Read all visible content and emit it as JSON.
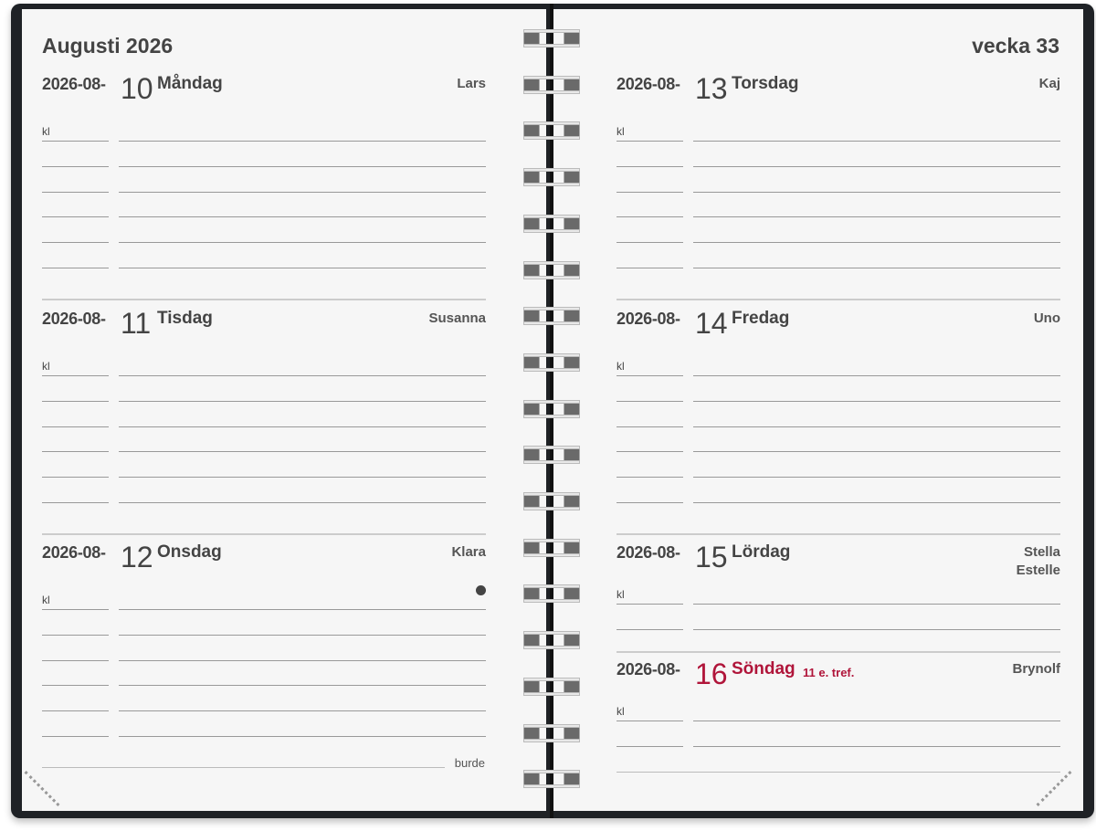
{
  "left_page": {
    "month_title": "Augusti 2026",
    "days": [
      {
        "date_prefix": "2026-08-",
        "day": "10",
        "weekday": "Måndag",
        "names": "Lars",
        "time_label": "kl"
      },
      {
        "date_prefix": "2026-08-",
        "day": "11",
        "weekday": "Tisdag",
        "names": "Susanna",
        "time_label": "kl"
      },
      {
        "date_prefix": "2026-08-",
        "day": "12",
        "weekday": "Onsdag",
        "names": "Klara",
        "time_label": "kl"
      }
    ],
    "brand": "burde"
  },
  "right_page": {
    "week_title": "vecka 33",
    "days": [
      {
        "date_prefix": "2026-08-",
        "day": "13",
        "weekday": "Torsdag",
        "names": "Kaj",
        "time_label": "kl"
      },
      {
        "date_prefix": "2026-08-",
        "day": "14",
        "weekday": "Fredag",
        "names": "Uno",
        "time_label": "kl"
      },
      {
        "date_prefix": "2026-08-",
        "day": "15",
        "weekday": "Lördag",
        "names": "Stella",
        "names2": "Estelle",
        "time_label": "kl"
      },
      {
        "date_prefix": "2026-08-",
        "day": "16",
        "weekday": "Söndag",
        "note": "11 e. tref.",
        "names": "Brynolf",
        "time_label": "kl"
      }
    ]
  },
  "colors": {
    "sunday": "#b0153a",
    "cover": "#1f2226"
  },
  "icons": {
    "moon_phase": "full-moon-dot-icon"
  }
}
